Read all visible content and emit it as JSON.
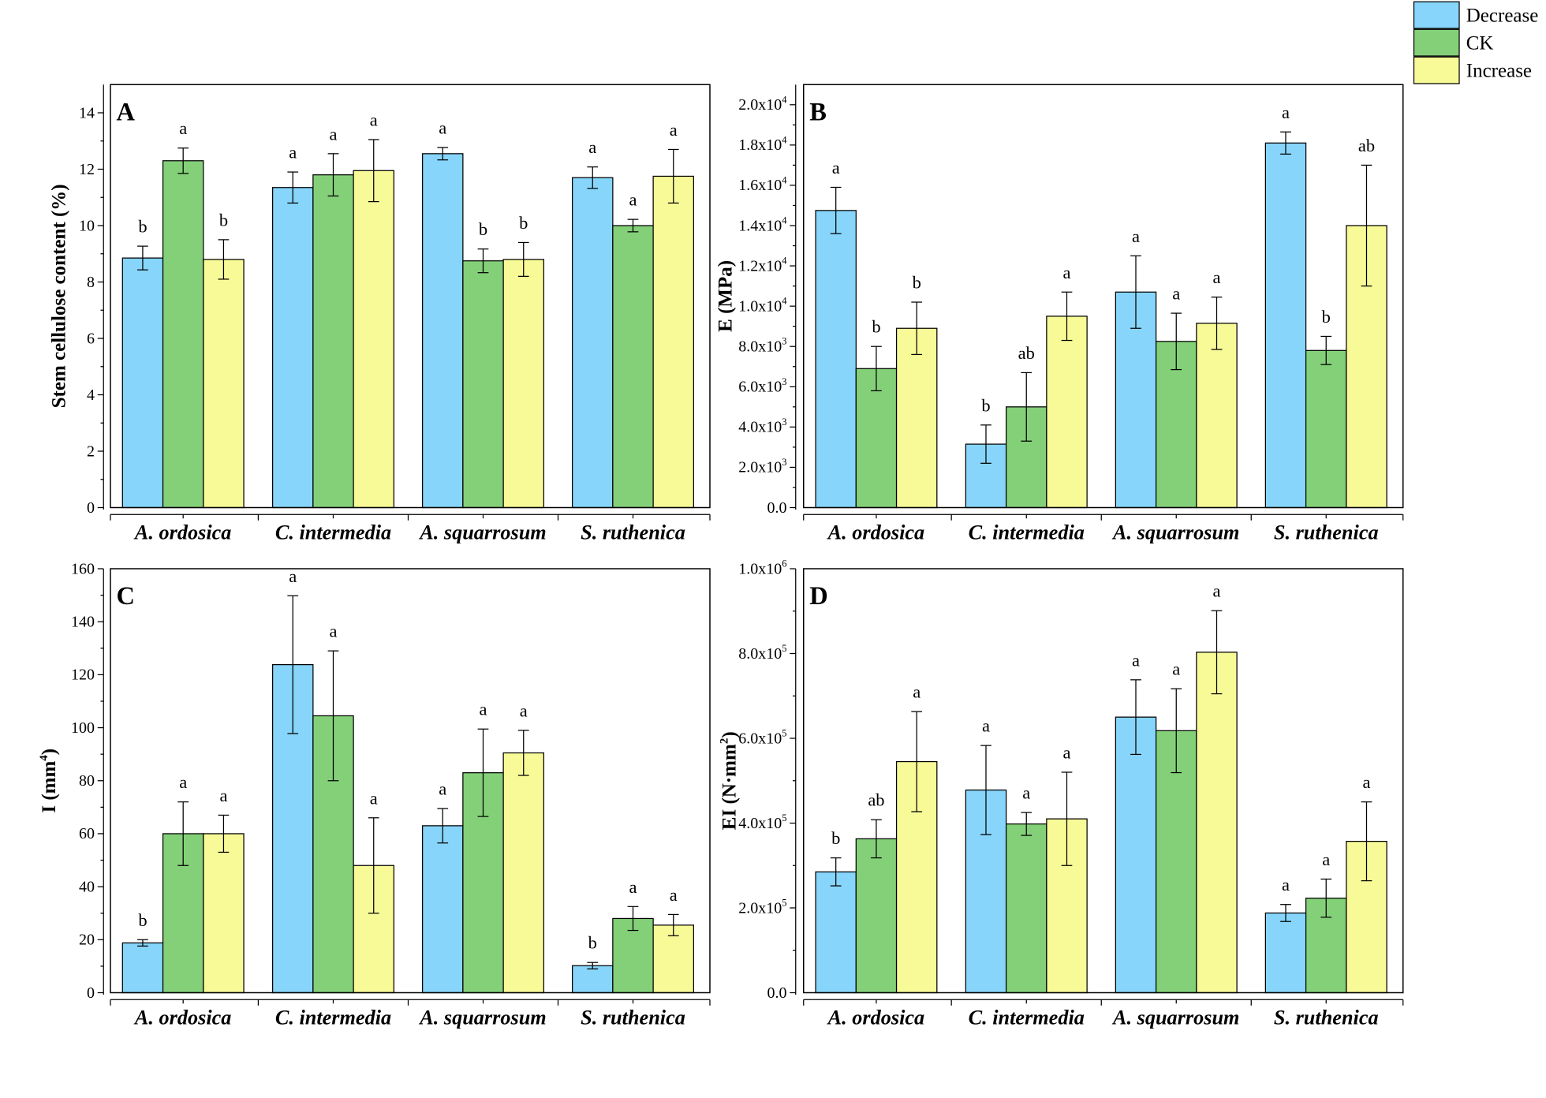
{
  "chart_data": {
    "legend": {
      "placement": "top-right",
      "entries": [
        {
          "name": "Decrease",
          "color": "#87d5fa"
        },
        {
          "name": "CK",
          "color": "#84d079"
        },
        {
          "name": "Increase",
          "color": "#f8fa98"
        }
      ]
    },
    "categories": [
      "A. ordosica",
      "C. intermedia",
      "A. squarrosum",
      "S. ruthenica"
    ],
    "panels": [
      {
        "id": "A",
        "type": "bar",
        "panel_label": "A",
        "ylabel": "Stem cellulose content (%)",
        "ylabel_unit_sup": "",
        "ylabel_tail": "",
        "ylim": [
          0,
          15
        ],
        "yticks": [
          0,
          2,
          4,
          6,
          8,
          10,
          12,
          14
        ],
        "ytick_labels": [
          {
            "text": "0"
          },
          {
            "text": "2"
          },
          {
            "text": "4"
          },
          {
            "text": "6"
          },
          {
            "text": "8"
          },
          {
            "text": "10"
          },
          {
            "text": "12"
          },
          {
            "text": "14"
          }
        ],
        "series": [
          {
            "name": "Decrease",
            "values": [
              8.85,
              11.35,
              12.55,
              11.7
            ],
            "errors": [
              0.42,
              0.55,
              0.22,
              0.38
            ],
            "labels": [
              "b",
              "a",
              "a",
              "a"
            ]
          },
          {
            "name": "CK",
            "values": [
              12.3,
              11.8,
              8.75,
              10.0
            ],
            "errors": [
              0.45,
              0.75,
              0.42,
              0.22
            ],
            "labels": [
              "a",
              "a",
              "b",
              "a"
            ]
          },
          {
            "name": "Increase",
            "values": [
              8.8,
              11.95,
              8.8,
              11.75
            ],
            "errors": [
              0.7,
              1.1,
              0.6,
              0.95
            ],
            "labels": [
              "b",
              "a",
              "b",
              "a"
            ]
          }
        ]
      },
      {
        "id": "B",
        "type": "bar",
        "panel_label": "B",
        "ylabel": "E (MPa)",
        "ylabel_unit_sup": "",
        "ylabel_tail": "",
        "ylim": [
          0,
          21000
        ],
        "yticks": [
          0,
          2000,
          4000,
          6000,
          8000,
          10000,
          12000,
          14000,
          16000,
          18000,
          20000
        ],
        "ytick_labels": [
          {
            "text": "0.0"
          },
          {
            "text": "2.0x10",
            "exp": "3"
          },
          {
            "text": "4.0x10",
            "exp": "3"
          },
          {
            "text": "6.0x10",
            "exp": "3"
          },
          {
            "text": "8.0x10",
            "exp": "3"
          },
          {
            "text": "1.0x10",
            "exp": "4"
          },
          {
            "text": "1.2x10",
            "exp": "4"
          },
          {
            "text": "1.4x10",
            "exp": "4"
          },
          {
            "text": "1.6x10",
            "exp": "4"
          },
          {
            "text": "1.8x10",
            "exp": "4"
          },
          {
            "text": "2.0x10",
            "exp": "4"
          }
        ],
        "series": [
          {
            "name": "Decrease",
            "values": [
              14750,
              3150,
              10700,
              18100
            ],
            "errors": [
              1150,
              950,
              1800,
              550
            ],
            "labels": [
              "a",
              "b",
              "a",
              "a"
            ]
          },
          {
            "name": "CK",
            "values": [
              6900,
              5000,
              8250,
              7800
            ],
            "errors": [
              1100,
              1700,
              1400,
              700
            ],
            "labels": [
              "b",
              "ab",
              "a",
              "b"
            ]
          },
          {
            "name": "Increase",
            "values": [
              8900,
              9500,
              9150,
              14000
            ],
            "errors": [
              1300,
              1200,
              1300,
              3000
            ],
            "labels": [
              "b",
              "a",
              "a",
              "ab"
            ]
          }
        ]
      },
      {
        "id": "C",
        "type": "bar",
        "panel_label": "C",
        "ylabel": "I (mm",
        "ylabel_unit_sup": "4",
        "ylabel_tail": ")",
        "ylim": [
          0,
          160
        ],
        "yticks": [
          0,
          20,
          40,
          60,
          80,
          100,
          120,
          140,
          160
        ],
        "ytick_labels": [
          {
            "text": "0"
          },
          {
            "text": "20"
          },
          {
            "text": "40"
          },
          {
            "text": "60"
          },
          {
            "text": "80"
          },
          {
            "text": "100"
          },
          {
            "text": "120"
          },
          {
            "text": "140"
          },
          {
            "text": "160"
          }
        ],
        "series": [
          {
            "name": "Decrease",
            "values": [
              18.8,
              123.8,
              63.0,
              10.2
            ],
            "errors": [
              1.2,
              26.0,
              6.5,
              1.2
            ],
            "labels": [
              "b",
              "a",
              "a",
              "b"
            ]
          },
          {
            "name": "CK",
            "values": [
              60.0,
              104.5,
              83.0,
              28.0
            ],
            "errors": [
              12.0,
              24.5,
              16.5,
              4.5
            ],
            "labels": [
              "a",
              "a",
              "a",
              "a"
            ]
          },
          {
            "name": "Increase",
            "values": [
              60.0,
              48.0,
              90.5,
              25.5
            ],
            "errors": [
              7.0,
              18.0,
              8.5,
              4.0
            ],
            "labels": [
              "a",
              "a",
              "a",
              "a"
            ]
          }
        ]
      },
      {
        "id": "D",
        "type": "bar",
        "panel_label": "D",
        "ylabel": "EI (N·mm",
        "ylabel_unit_sup": "2",
        "ylabel_tail": ")",
        "ylim": [
          0,
          1000000
        ],
        "yticks": [
          0,
          200000,
          400000,
          600000,
          800000,
          1000000
        ],
        "ytick_labels": [
          {
            "text": "0.0"
          },
          {
            "text": "2.0x10",
            "exp": "5"
          },
          {
            "text": "4.0x10",
            "exp": "5"
          },
          {
            "text": "6.0x10",
            "exp": "5"
          },
          {
            "text": "8.0x10",
            "exp": "5"
          },
          {
            "text": "1.0x10",
            "exp": "6"
          }
        ],
        "series": [
          {
            "name": "Decrease",
            "values": [
              285000,
              478000,
              650000,
              188000
            ],
            "errors": [
              33000,
              105000,
              88000,
              20000
            ],
            "labels": [
              "b",
              "a",
              "a",
              "a"
            ]
          },
          {
            "name": "CK",
            "values": [
              363000,
              398000,
              618000,
              223000
            ],
            "errors": [
              45000,
              27000,
              99000,
              45000
            ],
            "labels": [
              "ab",
              "a",
              "a",
              "a"
            ]
          },
          {
            "name": "Increase",
            "values": [
              545000,
              410000,
              803000,
              357000
            ],
            "errors": [
              118000,
              110000,
              98000,
              93000
            ],
            "labels": [
              "a",
              "a",
              "a",
              "a"
            ]
          }
        ]
      }
    ]
  }
}
